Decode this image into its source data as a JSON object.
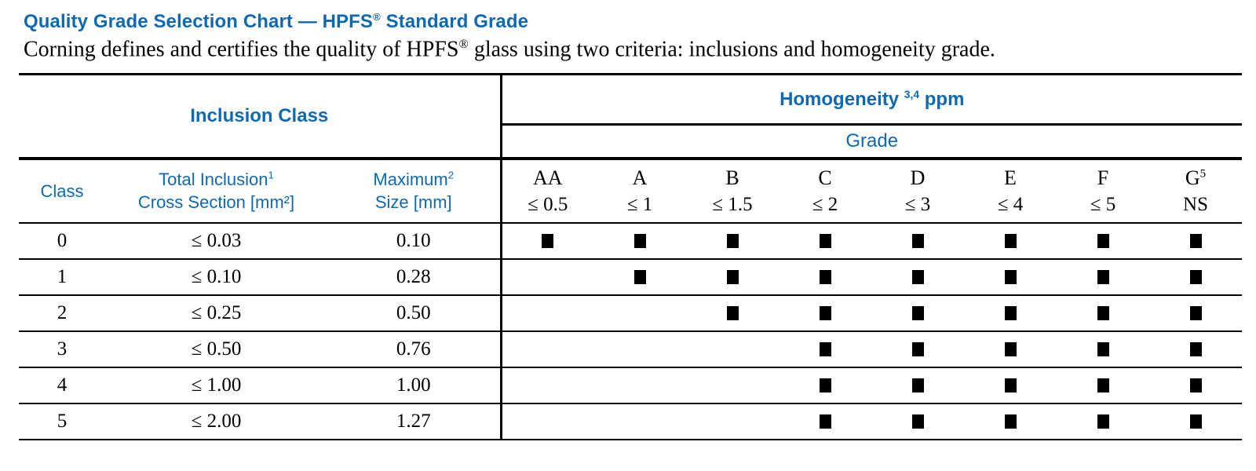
{
  "title": {
    "pre": "Quality Grade Selection Chart — HPFS",
    "reg": "®",
    "post": " Standard Grade"
  },
  "subtitle": {
    "pre": "Corning defines and certifies the quality of HPFS",
    "reg": "®",
    "post": " glass using two criteria: inclusions and homogeneity grade."
  },
  "table": {
    "left_header": "Inclusion Class",
    "homogeneity": {
      "text": "Homogeneity",
      "sup": "3,4",
      "unit": "ppm"
    },
    "grade_label": "Grade",
    "columns": {
      "class_label": "Class",
      "inclusion_line1": "Total Inclusion",
      "inclusion_sup": "1",
      "inclusion_line2": "Cross Section [mm²]",
      "max_line1": "Maximum",
      "max_sup": "2",
      "max_line2": "Size [mm]"
    },
    "grades": [
      {
        "letter": "AA",
        "sup": "",
        "limit": "≤ 0.5"
      },
      {
        "letter": "A",
        "sup": "",
        "limit": "≤ 1"
      },
      {
        "letter": "B",
        "sup": "",
        "limit": "≤ 1.5"
      },
      {
        "letter": "C",
        "sup": "",
        "limit": "≤ 2"
      },
      {
        "letter": "D",
        "sup": "",
        "limit": "≤ 3"
      },
      {
        "letter": "E",
        "sup": "",
        "limit": "≤ 4"
      },
      {
        "letter": "F",
        "sup": "",
        "limit": "≤ 5"
      },
      {
        "letter": "G",
        "sup": "5",
        "limit": "NS"
      }
    ],
    "marker_glyph": "filled-black-square",
    "rows": [
      {
        "class": "0",
        "cross_section": "≤ 0.03",
        "max_size": "0.10",
        "available": [
          true,
          true,
          true,
          true,
          true,
          true,
          true,
          true
        ]
      },
      {
        "class": "1",
        "cross_section": "≤ 0.10",
        "max_size": "0.28",
        "available": [
          false,
          true,
          true,
          true,
          true,
          true,
          true,
          true
        ]
      },
      {
        "class": "2",
        "cross_section": "≤ 0.25",
        "max_size": "0.50",
        "available": [
          false,
          false,
          true,
          true,
          true,
          true,
          true,
          true
        ]
      },
      {
        "class": "3",
        "cross_section": "≤ 0.50",
        "max_size": "0.76",
        "available": [
          false,
          false,
          false,
          true,
          true,
          true,
          true,
          true
        ]
      },
      {
        "class": "4",
        "cross_section": "≤ 1.00",
        "max_size": "1.00",
        "available": [
          false,
          false,
          false,
          true,
          true,
          true,
          true,
          true
        ]
      },
      {
        "class": "5",
        "cross_section": "≤ 2.00",
        "max_size": "1.27",
        "available": [
          false,
          false,
          false,
          true,
          true,
          true,
          true,
          true
        ]
      }
    ]
  },
  "colors": {
    "accent_blue": "#0E69B2",
    "text_black": "#000000",
    "border_black": "#000000",
    "background": "#FFFFFF"
  }
}
